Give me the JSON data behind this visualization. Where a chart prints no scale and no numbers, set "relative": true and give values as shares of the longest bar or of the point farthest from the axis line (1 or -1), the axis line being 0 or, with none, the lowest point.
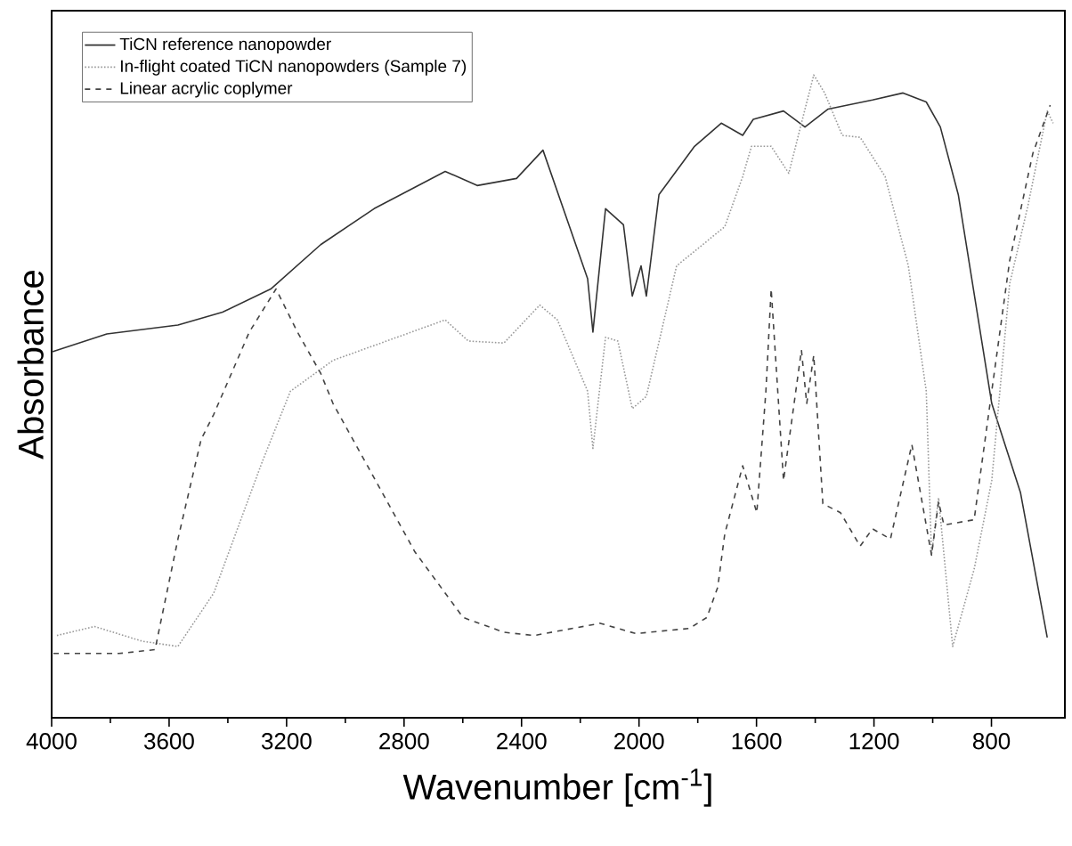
{
  "chart_data": {
    "type": "line",
    "relative": true,
    "xlabel": "Wavenumber [cm$^{-1}$]",
    "ylabel": "Absorbance",
    "xlim": [
      4000,
      550
    ],
    "xticks": [
      4000,
      3600,
      3200,
      2800,
      2400,
      2000,
      1600,
      1200,
      800
    ],
    "grid": false,
    "legend": "top left",
    "marker": "none",
    "series": [
      {
        "name": "TiCN reference nanopowder",
        "color": "#333333",
        "line_style": "solid",
        "x": [
          4000,
          3812,
          3570,
          3418,
          3254,
          3084,
          2902,
          2660,
          2551,
          2417,
          2327,
          2175,
          2157,
          2114,
          2053,
          2023,
          1993,
          1975,
          1932,
          1811,
          1720,
          1647,
          1611,
          1508,
          1435,
          1356,
          1205,
          1101,
          1022,
          974,
          913,
          799,
          701,
          610
        ],
        "values": [
          0.569,
          0.597,
          0.611,
          0.631,
          0.667,
          0.736,
          0.792,
          0.85,
          0.828,
          0.839,
          0.883,
          0.683,
          0.6,
          0.792,
          0.767,
          0.656,
          0.703,
          0.656,
          0.814,
          0.889,
          0.925,
          0.906,
          0.931,
          0.944,
          0.919,
          0.947,
          0.961,
          0.972,
          0.958,
          0.919,
          0.814,
          0.489,
          0.35,
          0.125
        ]
      },
      {
        "name": "In-flight coated TiCN nanopowders (Sample 7)",
        "color": "#999999",
        "line_style": "dotted",
        "x": [
          3982,
          3854,
          3691,
          3570,
          3448,
          3284,
          3187,
          3042,
          2860,
          2660,
          2581,
          2460,
          2338,
          2278,
          2175,
          2157,
          2114,
          2072,
          2023,
          1975,
          1872,
          1708,
          1647,
          1617,
          1550,
          1490,
          1447,
          1405,
          1368,
          1308,
          1247,
          1162,
          1083,
          1022,
          1004,
          980,
          932,
          859,
          799,
          738,
          677,
          610,
          590
        ],
        "values": [
          0.128,
          0.142,
          0.119,
          0.111,
          0.194,
          0.397,
          0.508,
          0.556,
          0.586,
          0.619,
          0.586,
          0.583,
          0.642,
          0.619,
          0.508,
          0.419,
          0.592,
          0.586,
          0.481,
          0.5,
          0.703,
          0.764,
          0.842,
          0.889,
          0.889,
          0.847,
          0.925,
          1.0,
          0.972,
          0.906,
          0.903,
          0.842,
          0.703,
          0.508,
          0.253,
          0.342,
          0.111,
          0.231,
          0.369,
          0.675,
          0.794,
          0.944,
          0.925
        ]
      },
      {
        "name": "Linear acrylic coplymer",
        "color": "#444444",
        "line_style": "dashed",
        "x": [
          3994,
          3770,
          3648,
          3570,
          3491,
          3448,
          3327,
          3236,
          3163,
          3084,
          3042,
          2921,
          2763,
          2599,
          2460,
          2357,
          2132,
          2011,
          1829,
          1769,
          1732,
          1708,
          1647,
          1599,
          1568,
          1550,
          1508,
          1447,
          1429,
          1405,
          1374,
          1314,
          1247,
          1205,
          1144,
          1071,
          1004,
          980,
          962,
          859,
          799,
          738,
          659,
          600
        ],
        "values": [
          0.1,
          0.1,
          0.106,
          0.278,
          0.433,
          0.472,
          0.6,
          0.667,
          0.6,
          0.536,
          0.489,
          0.389,
          0.258,
          0.156,
          0.133,
          0.128,
          0.147,
          0.131,
          0.139,
          0.156,
          0.203,
          0.286,
          0.392,
          0.319,
          0.508,
          0.667,
          0.369,
          0.572,
          0.489,
          0.564,
          0.333,
          0.319,
          0.267,
          0.294,
          0.278,
          0.425,
          0.253,
          0.336,
          0.3,
          0.308,
          0.508,
          0.711,
          0.878,
          0.953
        ]
      }
    ]
  }
}
